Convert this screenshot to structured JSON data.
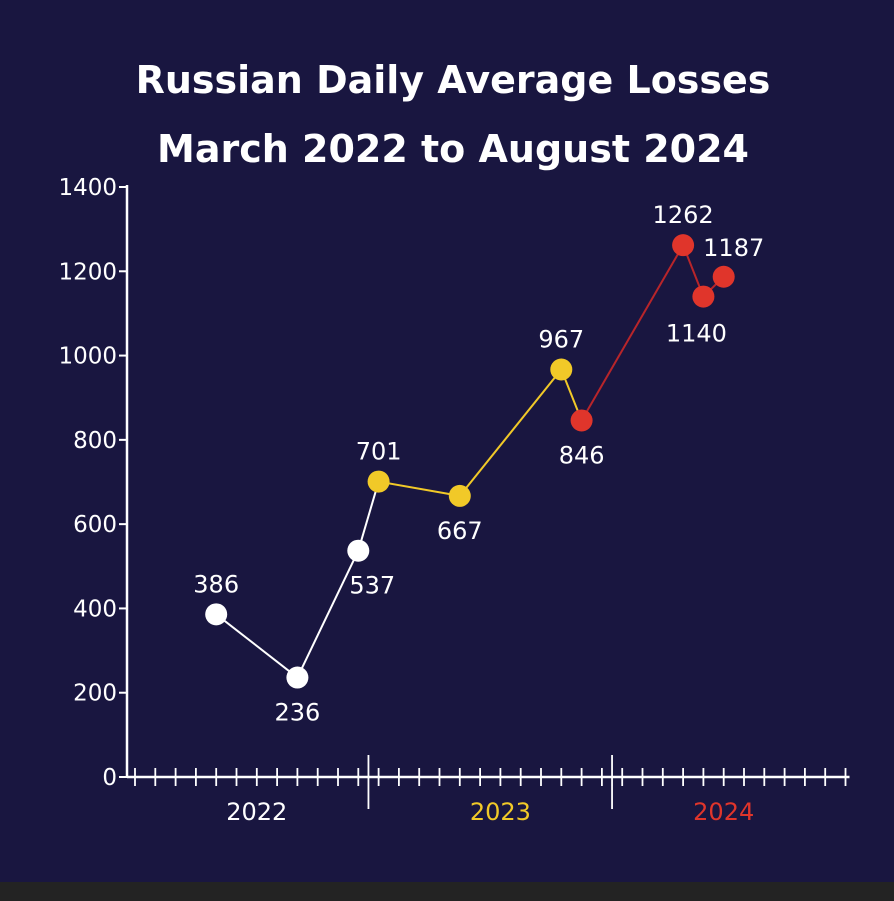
{
  "chart_data": {
    "type": "line",
    "title": "Russian Daily Average Losses",
    "subtitle": "March 2022 to August 2024",
    "xlabel": "",
    "ylabel": "",
    "ylim": [
      0,
      1400
    ],
    "yticks": [
      0,
      200,
      400,
      600,
      800,
      1000,
      1200,
      1400
    ],
    "x_unit": "month",
    "x_range": [
      "2022-01",
      "2024-12"
    ],
    "year_labels": [
      {
        "text": "2022",
        "color": "#ffffff",
        "center": "2022-07"
      },
      {
        "text": "2023",
        "color": "#f1c928",
        "center": "2023-07"
      },
      {
        "text": "2024",
        "color": "#e0352b",
        "center": "2024-06"
      }
    ],
    "points": [
      {
        "x": "2022-05",
        "value": 386,
        "label": "386",
        "color": "#ffffff",
        "label_pos": "above"
      },
      {
        "x": "2022-09",
        "value": 236,
        "label": "236",
        "color": "#ffffff",
        "label_pos": "below"
      },
      {
        "x": "2022-12",
        "value": 537,
        "label": "537",
        "color": "#ffffff",
        "label_pos": "below-right"
      },
      {
        "x": "2023-01",
        "value": 701,
        "label": "701",
        "color": "#f1c928",
        "label_pos": "above"
      },
      {
        "x": "2023-05",
        "value": 667,
        "label": "667",
        "color": "#f1c928",
        "label_pos": "below"
      },
      {
        "x": "2023-10",
        "value": 967,
        "label": "967",
        "color": "#f1c928",
        "label_pos": "above"
      },
      {
        "x": "2023-11",
        "value": 846,
        "label": "846",
        "color": "#e0352b",
        "label_pos": "below"
      },
      {
        "x": "2024-04",
        "value": 1262,
        "label": "1262",
        "color": "#e0352b",
        "label_pos": "above"
      },
      {
        "x": "2024-05",
        "value": 1140,
        "label": "1140",
        "color": "#e0352b",
        "label_pos": "below"
      },
      {
        "x": "2024-06",
        "value": 1187,
        "label": "1187",
        "color": "#e0352b",
        "label_pos": "above"
      }
    ],
    "segment_colors": [
      "#ffffff",
      "#ffffff",
      "#ffffff",
      "#f1c928",
      "#f1c928",
      "#f1c928",
      "#b8252a",
      "#b8252a",
      "#b8252a"
    ],
    "axis_color": "#ffffff",
    "background": "#191640",
    "grid": false
  }
}
